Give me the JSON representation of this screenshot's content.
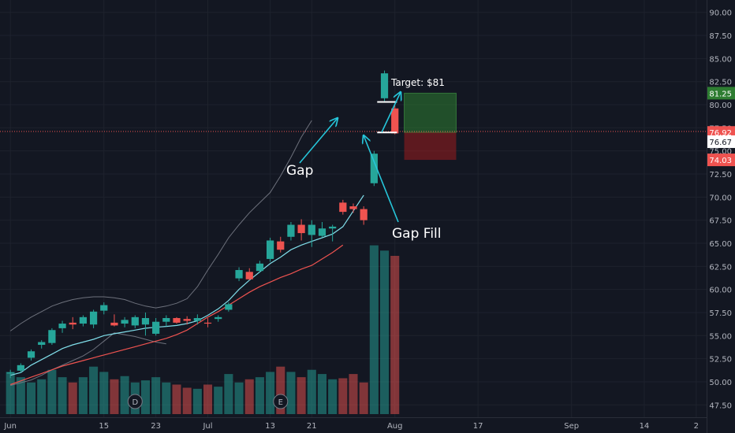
{
  "colors": {
    "background": "#131722",
    "grid": "#1e222d",
    "up": "#26a69a",
    "down": "#ef5350",
    "ema_fast": "#80deea",
    "ema_slow": "#ef5350",
    "bollinger": "#787b86",
    "arrow": "#26c6da",
    "target_zone": "#2e7d32",
    "stop_zone": "#b71c1c"
  },
  "chart_data": {
    "type": "candlestick",
    "title": "",
    "xlabel": "",
    "ylabel": "",
    "ylim": [
      46.5,
      91.0
    ],
    "y_ticks": [
      47.5,
      50.0,
      52.5,
      55.0,
      57.5,
      60.0,
      62.5,
      65.0,
      67.5,
      70.0,
      72.5,
      75.0,
      77.5,
      80.0,
      82.5,
      85.0,
      87.5,
      90.0
    ],
    "y_tick_labels": [
      "47.50",
      "50.00",
      "52.50",
      "55.00",
      "57.50",
      "60.00",
      "62.50",
      "65.00",
      "67.50",
      "70.00",
      "72.50",
      "75.00",
      "77.50",
      "80.00",
      "82.50",
      "85.00",
      "87.50",
      "90.00"
    ],
    "x_range": [
      -1,
      67
    ],
    "x_ticks": [
      {
        "index": 0,
        "label": "Jun"
      },
      {
        "index": 9,
        "label": "15"
      },
      {
        "index": 14,
        "label": "23"
      },
      {
        "index": 19,
        "label": "Jul"
      },
      {
        "index": 25,
        "label": "13"
      },
      {
        "index": 29,
        "label": "21"
      },
      {
        "index": 37,
        "label": "Aug"
      },
      {
        "index": 45,
        "label": "17"
      },
      {
        "index": 54,
        "label": "Sep"
      },
      {
        "index": 61,
        "label": "14"
      },
      {
        "index": 66,
        "label": "2"
      }
    ],
    "candles": [
      {
        "o": 50.9,
        "h": 51.3,
        "l": 50.4,
        "c": 51.0
      },
      {
        "o": 51.2,
        "h": 52.0,
        "l": 51.0,
        "c": 51.8
      },
      {
        "o": 52.6,
        "h": 53.5,
        "l": 52.3,
        "c": 53.3
      },
      {
        "o": 54.0,
        "h": 54.5,
        "l": 53.6,
        "c": 54.3
      },
      {
        "o": 54.2,
        "h": 55.8,
        "l": 54.0,
        "c": 55.6
      },
      {
        "o": 55.8,
        "h": 56.6,
        "l": 55.3,
        "c": 56.3
      },
      {
        "o": 56.4,
        "h": 57.0,
        "l": 55.7,
        "c": 56.2
      },
      {
        "o": 56.3,
        "h": 57.2,
        "l": 56.0,
        "c": 57.0
      },
      {
        "o": 56.2,
        "h": 57.8,
        "l": 55.8,
        "c": 57.6
      },
      {
        "o": 57.7,
        "h": 58.6,
        "l": 57.3,
        "c": 58.3
      },
      {
        "o": 56.4,
        "h": 57.3,
        "l": 56.0,
        "c": 56.1
      },
      {
        "o": 56.3,
        "h": 57.0,
        "l": 55.9,
        "c": 56.7
      },
      {
        "o": 56.1,
        "h": 57.2,
        "l": 55.8,
        "c": 57.0
      },
      {
        "o": 56.2,
        "h": 57.5,
        "l": 55.0,
        "c": 56.9
      },
      {
        "o": 55.2,
        "h": 56.9,
        "l": 55.0,
        "c": 56.5
      },
      {
        "o": 56.5,
        "h": 57.2,
        "l": 56.0,
        "c": 56.9
      },
      {
        "o": 56.9,
        "h": 57.0,
        "l": 56.3,
        "c": 56.4
      },
      {
        "o": 56.8,
        "h": 57.1,
        "l": 56.2,
        "c": 56.6
      },
      {
        "o": 56.6,
        "h": 57.3,
        "l": 56.2,
        "c": 56.9
      },
      {
        "o": 56.4,
        "h": 56.9,
        "l": 55.9,
        "c": 56.3
      },
      {
        "o": 56.8,
        "h": 57.2,
        "l": 56.5,
        "c": 57.0
      },
      {
        "o": 57.8,
        "h": 58.6,
        "l": 57.6,
        "c": 58.4
      },
      {
        "o": 61.2,
        "h": 62.4,
        "l": 60.9,
        "c": 62.1
      },
      {
        "o": 61.9,
        "h": 62.3,
        "l": 61.0,
        "c": 61.1
      },
      {
        "o": 62.0,
        "h": 63.1,
        "l": 61.8,
        "c": 62.8
      },
      {
        "o": 63.3,
        "h": 65.6,
        "l": 63.0,
        "c": 65.3
      },
      {
        "o": 65.2,
        "h": 65.7,
        "l": 64.0,
        "c": 64.3
      },
      {
        "o": 65.7,
        "h": 67.3,
        "l": 65.3,
        "c": 67.0
      },
      {
        "o": 67.0,
        "h": 67.6,
        "l": 65.3,
        "c": 66.1
      },
      {
        "o": 65.9,
        "h": 67.5,
        "l": 64.6,
        "c": 67.0
      },
      {
        "o": 65.8,
        "h": 67.3,
        "l": 65.6,
        "c": 66.6
      },
      {
        "o": 66.6,
        "h": 67.0,
        "l": 65.2,
        "c": 66.8
      },
      {
        "o": 69.4,
        "h": 69.7,
        "l": 68.1,
        "c": 68.4
      },
      {
        "o": 69.0,
        "h": 69.3,
        "l": 68.3,
        "c": 68.7
      },
      {
        "o": 68.7,
        "h": 69.0,
        "l": 67.0,
        "c": 67.5
      },
      {
        "o": 71.5,
        "h": 75.0,
        "l": 71.2,
        "c": 74.7
      },
      {
        "o": 80.7,
        "h": 83.7,
        "l": 80.4,
        "c": 83.4
      },
      {
        "o": 79.6,
        "h": 79.9,
        "l": 76.8,
        "c": 76.9
      }
    ],
    "candle_x": [
      0,
      1,
      2,
      3,
      4,
      5,
      6,
      7,
      8,
      9,
      10,
      11,
      12,
      13,
      14,
      15,
      16,
      17,
      18,
      19,
      20,
      21,
      22,
      23,
      24,
      25,
      26,
      27,
      28,
      29,
      30,
      31,
      32,
      33,
      34,
      35,
      36,
      37
    ],
    "volume_ylim": [
      0,
      100
    ],
    "volume": [
      40,
      35,
      30,
      33,
      42,
      35,
      30,
      35,
      45,
      40,
      33,
      36,
      30,
      32,
      35,
      30,
      28,
      25,
      24,
      28,
      26,
      38,
      30,
      33,
      35,
      40,
      45,
      40,
      35,
      42,
      38,
      33,
      34,
      38,
      30,
      160,
      155,
      150
    ],
    "ema_fast": [
      50.7,
      51.0,
      51.8,
      52.4,
      53.0,
      53.6,
      54.0,
      54.3,
      54.6,
      55.0,
      55.2,
      55.4,
      55.6,
      55.8,
      55.9,
      56.0,
      56.1,
      56.3,
      56.6,
      57.2,
      57.9,
      58.8,
      60.0,
      61.0,
      61.9,
      62.8,
      63.5,
      64.3,
      64.8,
      65.2,
      65.6,
      66.0,
      66.8,
      68.5,
      70.2
    ],
    "ema_slow": [
      49.7,
      50.1,
      50.5,
      50.9,
      51.3,
      51.7,
      52.0,
      52.3,
      52.6,
      52.9,
      53.2,
      53.5,
      53.8,
      54.1,
      54.4,
      54.7,
      55.1,
      55.6,
      56.3,
      57.0,
      57.6,
      58.3,
      59.0,
      59.7,
      60.3,
      60.8,
      61.3,
      61.7,
      62.2,
      62.6,
      63.3,
      64.0,
      64.8
    ],
    "bollinger_upper": [
      55.5,
      56.3,
      57.0,
      57.6,
      58.2,
      58.6,
      58.9,
      59.1,
      59.2,
      59.2,
      59.1,
      58.9,
      58.5,
      58.2,
      58.0,
      58.2,
      58.5,
      59.0,
      60.3,
      62.1,
      63.8,
      65.6,
      67.0,
      68.3,
      69.4,
      70.5,
      72.3,
      74.3,
      76.5,
      78.3
    ],
    "bollinger_lower": [
      49.6,
      49.9,
      50.2,
      50.7,
      51.3,
      51.8,
      52.3,
      52.8,
      53.5,
      54.4,
      55.3,
      55.1,
      54.9,
      54.6,
      54.3,
      54.1
    ],
    "gap_lines": [
      {
        "price": 80.3,
        "from_index": 35.3,
        "to_index": 37.2
      },
      {
        "price": 77.0,
        "from_index": 35.3,
        "to_index": 37.2
      }
    ],
    "current_price_line": 77.1,
    "position": {
      "entry": 77.0,
      "target": 81.25,
      "stop": 74.03,
      "from_index": 37.9,
      "to_index": 42.9
    },
    "price_labels": [
      {
        "price": 81.25,
        "label": "81.25",
        "kind": "target"
      },
      {
        "price": 77.0,
        "label": "76.92",
        "kind": "current"
      },
      {
        "price": 76.0,
        "label": "76.67",
        "kind": "neutral"
      },
      {
        "price": 74.03,
        "label": "74.03",
        "kind": "stop"
      }
    ],
    "event_markers": [
      {
        "index": 12,
        "label": "D"
      },
      {
        "index": 26,
        "label": "E"
      }
    ],
    "annotations": {
      "gap_label": "Gap",
      "gap_fill_label": "Gap Fill",
      "target_label": "Target: $81"
    }
  }
}
